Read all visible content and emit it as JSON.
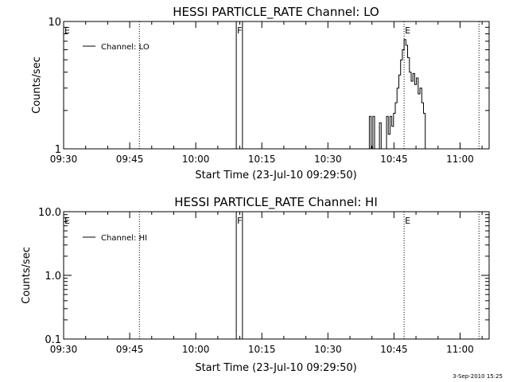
{
  "colors": {
    "background": "#ffffff",
    "foreground": "#000000"
  },
  "footer": {
    "date_stamp": "3-Sep-2010 15:25"
  },
  "chart_data": [
    {
      "type": "line",
      "title": "HESSI PARTICLE_RATE Channel: LO",
      "xlabel": "Start Time (23-Jul-10 09:29:50)",
      "ylabel": "Counts/sec",
      "x_ticks": [
        "09:30",
        "09:45",
        "10:00",
        "10:15",
        "10:30",
        "10:45",
        "11:00"
      ],
      "x_tick_minutes": [
        30,
        45,
        60,
        75,
        90,
        105,
        120
      ],
      "xlim_minutes": [
        30,
        126.6
      ],
      "yscale": "log",
      "y_ticks": [
        "10",
        "1"
      ],
      "y_tick_values": [
        10,
        1
      ],
      "ylim": [
        1,
        10
      ],
      "legend": {
        "label": "Channel: LO",
        "placement": "top-left"
      },
      "markers": [
        {
          "label": "E",
          "minute": 30.0,
          "style": "solid"
        },
        {
          "label": "",
          "minute": 47.2,
          "style": "dotted"
        },
        {
          "label": "F",
          "minute": 69.2,
          "style": "solid"
        },
        {
          "label": "",
          "minute": 70.6,
          "style": "solid"
        },
        {
          "label": "E",
          "minute": 107.3,
          "style": "dotted"
        },
        {
          "label": "",
          "minute": 124.3,
          "style": "dotted"
        }
      ],
      "series": [
        {
          "points": [
            [
              99.4,
              1.0
            ],
            [
              99.4,
              1.8
            ],
            [
              99.8,
              1.8
            ],
            [
              99.8,
              1.0
            ],
            [
              100.2,
              1.0
            ],
            [
              100.2,
              1.8
            ],
            [
              100.6,
              1.8
            ],
            [
              100.6,
              1.0
            ],
            [
              101.7,
              1.0
            ],
            [
              101.7,
              1.6
            ],
            [
              102.1,
              1.6
            ],
            [
              102.1,
              1.0
            ],
            [
              103.3,
              1.0
            ],
            [
              103.3,
              1.8
            ],
            [
              103.7,
              1.8
            ],
            [
              103.7,
              1.3
            ],
            [
              104.1,
              1.3
            ],
            [
              104.1,
              1.8
            ],
            [
              104.5,
              1.8
            ],
            [
              104.5,
              1.5
            ],
            [
              104.9,
              1.5
            ],
            [
              104.9,
              1.9
            ],
            [
              105.3,
              1.9
            ],
            [
              105.3,
              2.3
            ],
            [
              105.7,
              2.3
            ],
            [
              105.7,
              3.0
            ],
            [
              106.1,
              3.0
            ],
            [
              106.1,
              3.8
            ],
            [
              106.5,
              3.8
            ],
            [
              106.5,
              5.0
            ],
            [
              106.9,
              5.0
            ],
            [
              106.9,
              6.0
            ],
            [
              107.3,
              6.0
            ],
            [
              107.3,
              7.2
            ],
            [
              107.7,
              7.2
            ],
            [
              107.7,
              6.5
            ],
            [
              108.1,
              6.5
            ],
            [
              108.1,
              5.2
            ],
            [
              108.5,
              5.2
            ],
            [
              108.5,
              4.0
            ],
            [
              108.9,
              4.0
            ],
            [
              108.9,
              3.4
            ],
            [
              109.3,
              3.4
            ],
            [
              109.3,
              3.9
            ],
            [
              109.7,
              3.9
            ],
            [
              109.7,
              3.2
            ],
            [
              110.1,
              3.2
            ],
            [
              110.1,
              3.6
            ],
            [
              110.5,
              3.6
            ],
            [
              110.5,
              2.7
            ],
            [
              110.9,
              2.7
            ],
            [
              110.9,
              3.0
            ],
            [
              111.3,
              3.0
            ],
            [
              111.3,
              2.3
            ],
            [
              111.7,
              2.3
            ],
            [
              111.7,
              1.9
            ],
            [
              112.1,
              1.9
            ],
            [
              112.1,
              1.0
            ]
          ]
        }
      ]
    },
    {
      "type": "line",
      "title": "HESSI PARTICLE_RATE Channel: HI",
      "xlabel": "Start Time (23-Jul-10 09:29:50)",
      "ylabel": "Counts/sec",
      "x_ticks": [
        "09:30",
        "09:45",
        "10:00",
        "10:15",
        "10:30",
        "10:45",
        "11:00"
      ],
      "x_tick_minutes": [
        30,
        45,
        60,
        75,
        90,
        105,
        120
      ],
      "xlim_minutes": [
        30,
        126.6
      ],
      "yscale": "log",
      "y_ticks": [
        "10.0",
        "1.0",
        "0.1"
      ],
      "y_tick_values": [
        10,
        1,
        0.1
      ],
      "ylim": [
        0.1,
        10
      ],
      "legend": {
        "label": "Channel: HI",
        "placement": "top-left"
      },
      "markers": [
        {
          "label": "E",
          "minute": 30.0,
          "style": "solid"
        },
        {
          "label": "",
          "minute": 47.2,
          "style": "dotted"
        },
        {
          "label": "F",
          "minute": 69.2,
          "style": "solid"
        },
        {
          "label": "",
          "minute": 70.6,
          "style": "solid"
        },
        {
          "label": "E",
          "minute": 107.3,
          "style": "dotted"
        },
        {
          "label": "",
          "minute": 124.3,
          "style": "dotted"
        }
      ],
      "series": [
        {
          "points": []
        }
      ]
    }
  ]
}
